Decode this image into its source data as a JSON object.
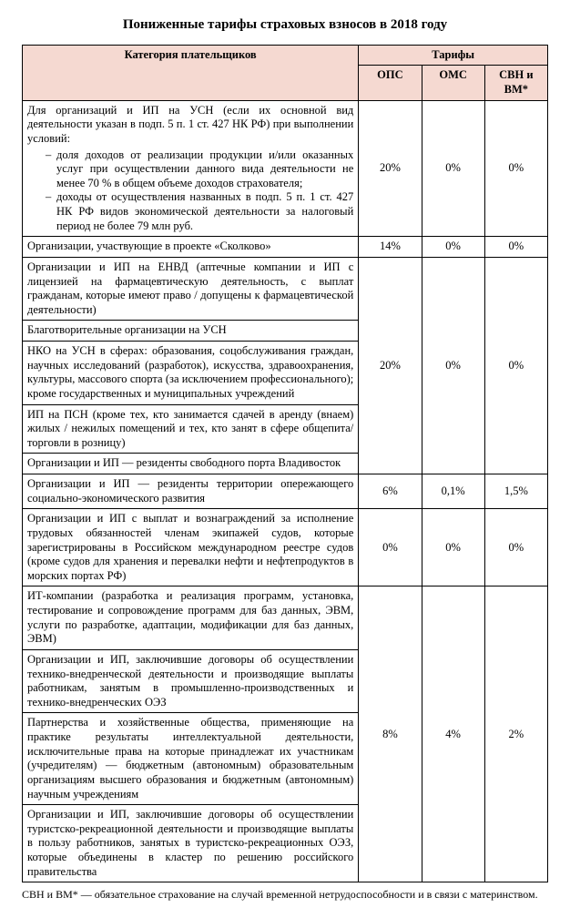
{
  "title": "Пониженные тарифы страховых взносов в 2018 году",
  "headers": {
    "category": "Категория плательщиков",
    "tariffs": "Тарифы",
    "ops": "ОПС",
    "oms": "ОМС",
    "sbn": "СВН и ВМ*"
  },
  "rows": [
    {
      "cat_intro": "Для организаций и ИП на УСН (если их основной вид деятельности указан в подп. 5 п. 1 ст. 427 НК РФ) при выполнении условий:",
      "bullets": [
        "доля доходов от реализации продукции и/или оказанных услуг при осуществлении данного вида деятельности не менее 70 % в общем объеме доходов страхователя;",
        "доходы от осуществления названных в подп. 5 п. 1 ст. 427 НК РФ видов экономической деятельности за налоговый период не более 79 млн руб."
      ],
      "ops": "20%",
      "oms": "0%",
      "sbn": "0%"
    },
    {
      "cat": "Организации, участвующие в проекте «Сколково»",
      "ops": "14%",
      "oms": "0%",
      "sbn": "0%"
    },
    {
      "cat": "Организации и ИП на ЕНВД (аптечные компании и ИП с лицензией на фармацевтическую деятельность, с выплат гражданам, которые имеют право / допущены к фармацевтической деятельности)"
    },
    {
      "cat": "Благотворительные организации на УСН"
    },
    {
      "cat": "НКО на УСН в сферах: образования, соцобслуживания граждан, научных исследований (разработок), искусства, здравоохранения, культуры, массового спорта (за исключением профессионального); кроме государственных и муниципальных учреждений",
      "ops": "20%",
      "oms": "0%",
      "sbn": "0%",
      "rowspan": 5
    },
    {
      "cat": "ИП на ПСН (кроме тех, кто занимается сдачей в аренду (внаем) жилых / нежилых помещений и тех, кто занят в сфере общепита/ торговли в розницу)"
    },
    {
      "cat": "Организации и ИП — резиденты свободного порта Владивосток"
    },
    {
      "cat": "Организации и ИП — резиденты территории опережающего социально-экономического развития",
      "ops": "6%",
      "oms": "0,1%",
      "sbn": "1,5%"
    },
    {
      "cat": "Организации и ИП с выплат и вознаграждений за исполнение трудовых обязанностей членам экипажей судов, которые зарегистрированы в Российском международном реестре судов (кроме судов для хранения и перевалки нефти и нефтепродуктов в морских портах РФ)",
      "ops": "0%",
      "oms": "0%",
      "sbn": "0%"
    },
    {
      "cat": "ИТ-компании (разработка и реализация программ, установка, тестирование и сопровождение программ для баз данных, ЭВМ, услуги по разработке, адаптации, модификации для баз данных, ЭВМ)"
    },
    {
      "cat": "Организации и ИП, заключившие договоры об осуществлении технико-внедренческой деятельности и производящие выплаты работникам, занятым в промышленно-производственных и технико-внедренческих ОЭЗ"
    },
    {
      "cat": "Партнерства и хозяйственные общества, применяющие на практике результаты интеллектуальной деятельности, исключительные права на которые принадлежат их участникам (учредителям) — бюджетным (автономным) образовательным организациям высшего образования и бюджетным (автономным) научным учреждениям",
      "ops": "8%",
      "oms": "4%",
      "sbn": "2%",
      "rowspan": 4
    },
    {
      "cat": "Организации и ИП, заключившие договоры об осуществлении туристско-рекреационной деятельности и производящие выплаты в пользу работников, занятых в туристско-рекреационных ОЭЗ, которые объединены в кластер по решению российского правительства"
    }
  ],
  "footnote": "СВН и ВМ* — обязательное страхование на случай временной нетрудоспособности и в связи с материнством.",
  "colors": {
    "header_bg": "#f5d9d1"
  }
}
